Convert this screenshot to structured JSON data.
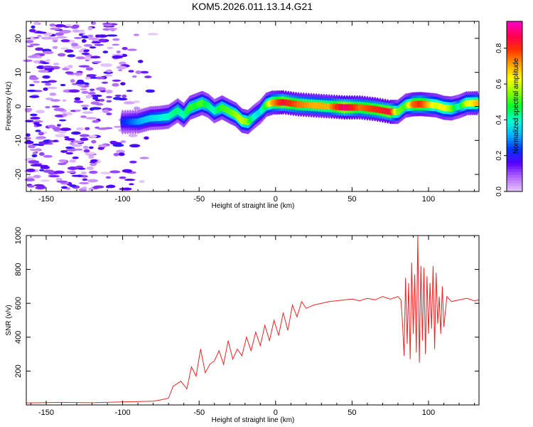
{
  "chart_data": [
    {
      "type": "heatmap",
      "title": "KOM5.2026.011.13.14.G21",
      "xlabel": "Height of straight line (km)",
      "ylabel": "Frequency (Hz)",
      "xlim": [
        -163,
        133
      ],
      "ylim": [
        -25,
        25
      ],
      "xticks": [
        -150,
        -100,
        -50,
        0,
        50,
        100
      ],
      "yticks": [
        -20,
        -10,
        0,
        10,
        20
      ],
      "colorbar": {
        "label": "Normalized spectral amplitude",
        "range": [
          0,
          0.95
        ],
        "ticks": [
          "0.0",
          "0.2",
          "0.4",
          "0.6",
          "0.8"
        ],
        "colors": [
          "#e7c9ff",
          "#b46cff",
          "#5a00ff",
          "#0033ff",
          "#00b4ff",
          "#00ffd2",
          "#00ff32",
          "#8cff00",
          "#ffff00",
          "#ffa000",
          "#ff3200",
          "#ff0050",
          "#ff00c8"
        ]
      },
      "ridge": {
        "x": [
          -100,
          -90,
          -82,
          -75,
          -70,
          -64,
          -60,
          -56,
          -52,
          -48,
          -44,
          -40,
          -35,
          -30,
          -26,
          -22,
          -18,
          -14,
          -10,
          -6,
          -2,
          5,
          15,
          25,
          35,
          45,
          55,
          65,
          75,
          80,
          85,
          90,
          95,
          100,
          105,
          110,
          115,
          120,
          125,
          133
        ],
        "y": [
          -4.6,
          -4.5,
          -3.5,
          -3.3,
          -3.0,
          -1.2,
          -2.6,
          -0.4,
          0.3,
          1.0,
          0.2,
          -1.4,
          -0.3,
          -1.5,
          -2.4,
          -4.2,
          -4.6,
          -3.0,
          -1.6,
          0.5,
          1.1,
          1.2,
          0.6,
          0.3,
          0.0,
          -0.3,
          -0.3,
          -0.8,
          -1.6,
          -1.6,
          0.2,
          0.6,
          0.7,
          0.5,
          0.3,
          -0.4,
          -0.6,
          0.0,
          0.9,
          1.0
        ],
        "amplitude": [
          0.22,
          0.3,
          0.35,
          0.38,
          0.4,
          0.45,
          0.4,
          0.5,
          0.48,
          0.52,
          0.45,
          0.4,
          0.5,
          0.52,
          0.55,
          0.6,
          0.55,
          0.4,
          0.35,
          0.5,
          0.7,
          0.85,
          0.75,
          0.7,
          0.7,
          0.9,
          0.75,
          0.8,
          0.85,
          0.55,
          0.5,
          0.75,
          0.8,
          0.7,
          0.6,
          0.65,
          0.55,
          0.4,
          0.6,
          0.7
        ]
      },
      "noise_region": {
        "x_range": [
          -163,
          -78
        ],
        "y_range": [
          -25,
          25
        ],
        "amplitude_range": [
          0.0,
          0.2
        ]
      }
    },
    {
      "type": "line",
      "title": "",
      "xlabel": "Height of straight line (km)",
      "ylabel": "SNR (v/v)",
      "xlim": [
        -163,
        133
      ],
      "ylim": [
        0,
        1000
      ],
      "xticks": [
        -150,
        -100,
        -50,
        0,
        50,
        100
      ],
      "yticks": [
        200,
        400,
        600,
        800,
        1000
      ],
      "series": [
        {
          "name": "SNR",
          "color": "#ee2222",
          "x": [
            -163,
            -140,
            -120,
            -100,
            -90,
            -80,
            -75,
            -70,
            -67,
            -62,
            -58,
            -55,
            -52,
            -49,
            -46,
            -43,
            -40,
            -37,
            -34,
            -31,
            -28,
            -25,
            -22,
            -19,
            -16,
            -13,
            -10,
            -7,
            -4,
            -1,
            2,
            5,
            8,
            11,
            14,
            17,
            20,
            25,
            30,
            35,
            40,
            45,
            50,
            55,
            60,
            65,
            70,
            75,
            80,
            82,
            83,
            84,
            85,
            86,
            87,
            88,
            89,
            90,
            91,
            92,
            93,
            94,
            95,
            96,
            97,
            98,
            99,
            100,
            101,
            102,
            103,
            104,
            105,
            106,
            107,
            108,
            109,
            110,
            112,
            115,
            120,
            125,
            130,
            133
          ],
          "y": [
            12,
            15,
            13,
            18,
            20,
            22,
            30,
            40,
            110,
            140,
            95,
            225,
            170,
            330,
            190,
            240,
            260,
            320,
            240,
            380,
            270,
            330,
            290,
            400,
            320,
            430,
            350,
            470,
            380,
            500,
            410,
            545,
            440,
            590,
            520,
            610,
            570,
            590,
            600,
            610,
            615,
            620,
            625,
            615,
            630,
            620,
            640,
            625,
            640,
            620,
            480,
            290,
            750,
            360,
            720,
            270,
            840,
            420,
            770,
            310,
            1000,
            250,
            820,
            380,
            810,
            300,
            760,
            420,
            720,
            450,
            820,
            330,
            780,
            480,
            640,
            420,
            700,
            460,
            640,
            610,
            620,
            630,
            615,
            620
          ]
        }
      ]
    }
  ]
}
